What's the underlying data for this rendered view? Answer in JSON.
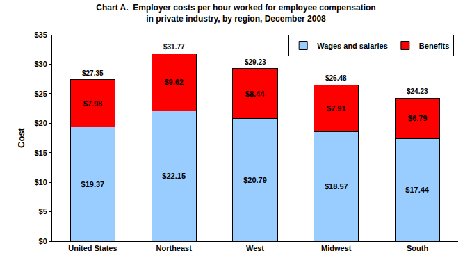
{
  "chart_data": {
    "type": "bar",
    "title": [
      "Chart A.  Employer costs per hour worked for employee compensation",
      "in private industry, by region, December 2008"
    ],
    "ylabel": "Cost",
    "categories": [
      "United States",
      "Northeast",
      "West",
      "Midwest",
      "South"
    ],
    "series": [
      {
        "name": "Wages and salaries",
        "color": "#99ccff",
        "values": [
          19.37,
          22.15,
          20.79,
          18.57,
          17.44
        ],
        "value_labels": [
          "$19.37",
          "$22.15",
          "$20.79",
          "$18.57",
          "$17.44"
        ]
      },
      {
        "name": "Benefits",
        "color": "#ff0000",
        "values": [
          7.98,
          9.62,
          8.44,
          7.91,
          6.79
        ],
        "value_labels": [
          "$7.98",
          "$9.62",
          "$8.44",
          "$7.91",
          "$6.79"
        ]
      }
    ],
    "totals": {
      "values": [
        27.35,
        31.77,
        29.23,
        26.48,
        24.23
      ],
      "value_labels": [
        "$27.35",
        "$31.77",
        "$29.23",
        "$26.48",
        "$24.23"
      ]
    },
    "ylim": [
      0,
      35
    ],
    "yticks": [
      {
        "value": 0,
        "label": "$0"
      },
      {
        "value": 5,
        "label": "$5"
      },
      {
        "value": 10,
        "label": "$10"
      },
      {
        "value": 15,
        "label": "$15"
      },
      {
        "value": 20,
        "label": "$20"
      },
      {
        "value": 25,
        "label": "$25"
      },
      {
        "value": 30,
        "label": "$30"
      },
      {
        "value": 35,
        "label": "$35"
      }
    ],
    "stacked": true,
    "data_labels": true,
    "legend": "top right",
    "grid": false
  }
}
